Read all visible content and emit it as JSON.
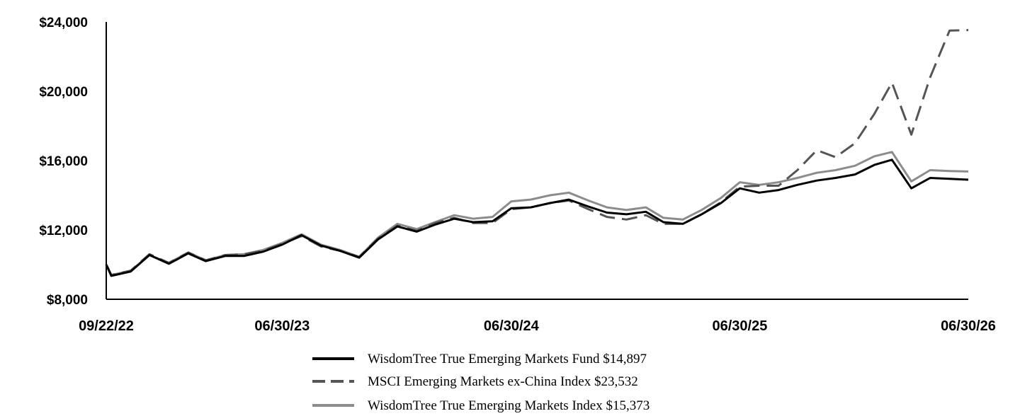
{
  "chart_data": {
    "type": "line",
    "title": "",
    "xlabel": "",
    "ylabel": "",
    "ylim": [
      8000,
      24000
    ],
    "y_ticks": [
      "$8,000",
      "$12,000",
      "$16,000",
      "$20,000",
      "$24,000"
    ],
    "y_tick_values": [
      8000,
      12000,
      16000,
      20000,
      24000
    ],
    "x_ticks": [
      "09/22/22",
      "06/30/23",
      "06/30/24",
      "06/30/25",
      "06/30/26"
    ],
    "x_tick_dates": [
      "2022-09-22",
      "2023-06-30",
      "2024-06-30",
      "2025-06-30",
      "2026-06-30"
    ],
    "grid": false,
    "legend_position": "bottom",
    "dates": [
      "2022-09-22",
      "2022-09-30",
      "2022-10-31",
      "2022-11-30",
      "2022-12-31",
      "2023-01-31",
      "2023-02-28",
      "2023-03-31",
      "2023-04-30",
      "2023-05-31",
      "2023-06-30",
      "2023-07-31",
      "2023-08-31",
      "2023-09-30",
      "2023-10-31",
      "2023-11-30",
      "2023-12-31",
      "2024-01-31",
      "2024-02-29",
      "2024-03-31",
      "2024-04-30",
      "2024-05-31",
      "2024-06-30",
      "2024-07-31",
      "2024-08-31",
      "2024-09-30",
      "2024-10-31",
      "2024-11-30",
      "2024-12-31",
      "2025-01-31",
      "2025-02-28",
      "2025-03-31",
      "2025-04-30",
      "2025-05-31",
      "2025-06-30",
      "2025-07-31",
      "2025-08-31",
      "2025-09-30",
      "2025-10-31",
      "2025-11-30",
      "2025-12-31",
      "2026-01-31",
      "2026-02-28",
      "2026-03-31",
      "2026-04-30",
      "2026-05-31",
      "2026-06-30"
    ],
    "series": [
      {
        "name": "WisdomTree True Emerging Markets Fund $14,897",
        "color": "#000000",
        "style": "solid",
        "values": [
          10000,
          9350,
          9600,
          10550,
          10050,
          10650,
          10200,
          10500,
          10500,
          10750,
          11150,
          11700,
          11100,
          10800,
          10400,
          11450,
          12200,
          11900,
          12300,
          12650,
          12450,
          12500,
          13250,
          13300,
          13550,
          13750,
          13350,
          13000,
          12900,
          13050,
          12450,
          12350,
          12900,
          13550,
          14400,
          14150,
          14300,
          14600,
          14850,
          15000,
          15200,
          15750,
          16050,
          14400,
          15000,
          14950,
          14897
        ]
      },
      {
        "name": "MSCI Emerging Markets ex-China Index $23,532",
        "color": "#555555",
        "style": "dashed",
        "values": [
          10000,
          9400,
          9650,
          10600,
          10100,
          10700,
          10250,
          10550,
          10600,
          10800,
          11200,
          11650,
          11050,
          10800,
          10450,
          11500,
          12250,
          11950,
          12400,
          12700,
          12400,
          12400,
          13200,
          13300,
          13550,
          13700,
          13200,
          12750,
          12600,
          12850,
          12350,
          12350,
          12900,
          13600,
          14500,
          14550,
          14550,
          15450,
          16600,
          16200,
          17000,
          18700,
          20500,
          17500,
          20800,
          23500,
          23532
        ]
      },
      {
        "name": "WisdomTree True Emerging Markets Index $15,373",
        "color": "#8c8c8c",
        "style": "solid",
        "values": [
          10000,
          9400,
          9650,
          10550,
          10100,
          10700,
          10250,
          10550,
          10600,
          10850,
          11250,
          11750,
          11150,
          10850,
          10450,
          11550,
          12350,
          12050,
          12450,
          12850,
          12650,
          12750,
          13650,
          13750,
          14000,
          14150,
          13700,
          13300,
          13150,
          13300,
          12700,
          12600,
          13150,
          13850,
          14750,
          14600,
          14750,
          15000,
          15300,
          15450,
          15700,
          16250,
          16500,
          14800,
          15450,
          15400,
          15373
        ]
      }
    ]
  }
}
